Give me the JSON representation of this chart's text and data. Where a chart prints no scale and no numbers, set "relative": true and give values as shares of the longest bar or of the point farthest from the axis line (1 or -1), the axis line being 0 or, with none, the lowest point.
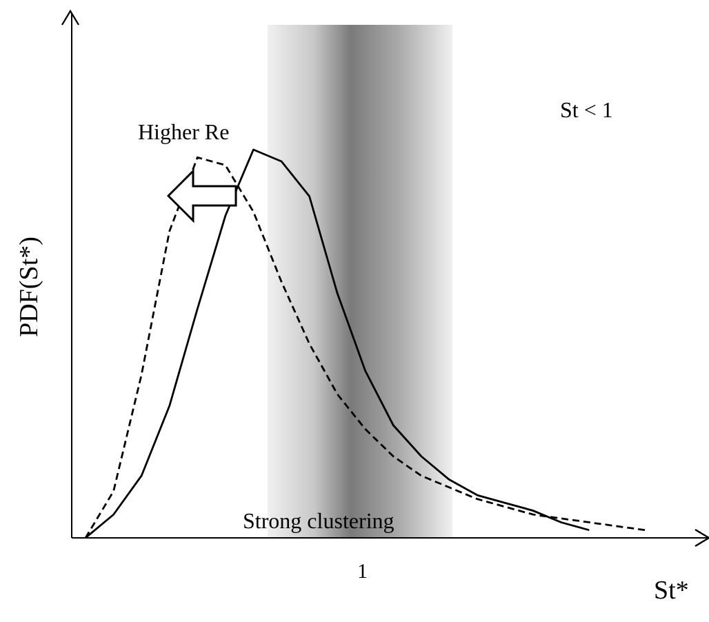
{
  "chart_data": {
    "type": "line",
    "relative": true,
    "xlabel": "St*",
    "ylabel": "PDF(St*)",
    "legend": false,
    "marker": "none",
    "annotations": [
      "Higher Re",
      "St < 1",
      "Strong clustering",
      "1"
    ],
    "categories": [
      null,
      null,
      null,
      null,
      null,
      null,
      null,
      null,
      null,
      null,
      null,
      null,
      null,
      null,
      null,
      null,
      null,
      null,
      null,
      null,
      null,
      null
    ],
    "series": [
      {
        "color": "#000000",
        "line_style": "solid",
        "values": [
          0.0,
          0.06,
          0.16,
          0.34,
          0.59,
          0.83,
          1,
          0.97,
          0.88,
          0.63,
          0.43,
          0.29,
          0.21,
          0.15,
          0.11,
          0.09,
          0.07,
          0.04,
          0.02,
          null,
          null,
          null
        ]
      },
      {
        "color": "#000000",
        "line_style": "dashed",
        "values": [
          0.0,
          0.12,
          0.42,
          0.79,
          0.98,
          0.96,
          0.84,
          0.66,
          0.5,
          0.37,
          0.28,
          0.21,
          0.16,
          0.13,
          0.1,
          0.08,
          0.06,
          0.05,
          0.04,
          0.03,
          0.02,
          null
        ]
      }
    ]
  }
}
